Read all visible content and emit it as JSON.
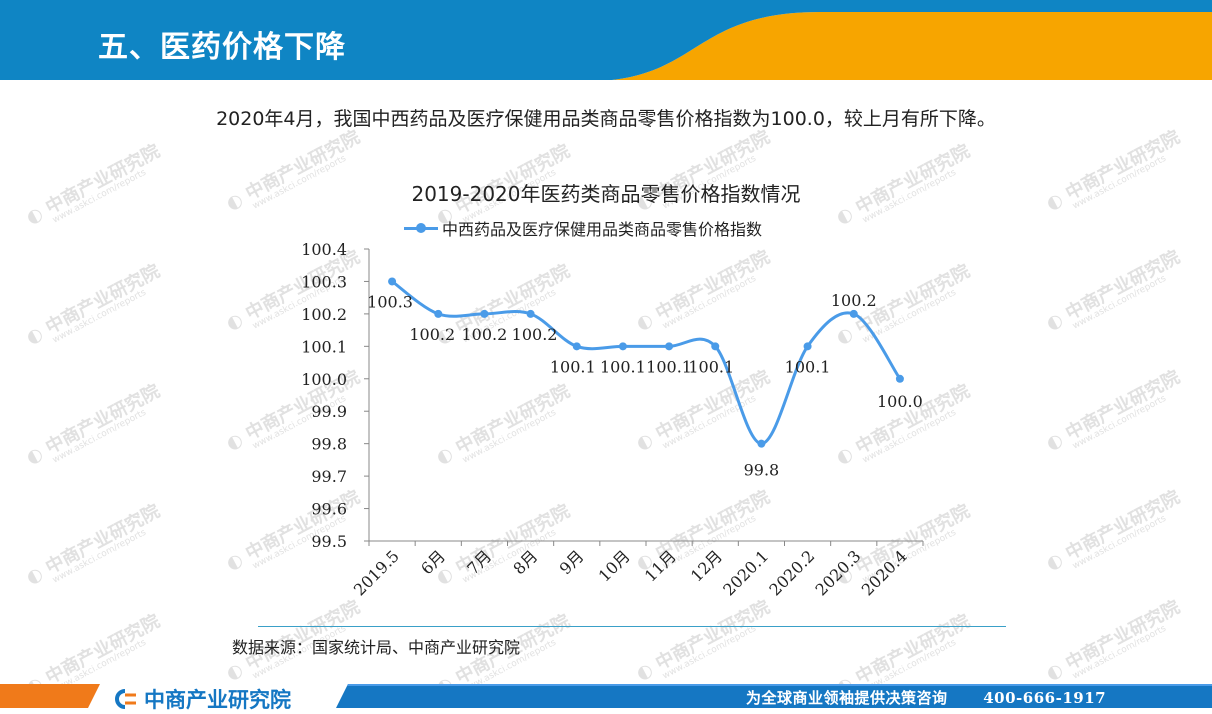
{
  "header": {
    "title": "五、医药价格下降",
    "colors": {
      "primary": "#0f85c4",
      "accent": "#f7a500"
    }
  },
  "subtitle": "2020年4月，我国中西药品及医疗保健用品类商品零售价格指数为100.0，较上月有所下降。",
  "watermark": {
    "name": "中商产业研究院",
    "url": "www.askci.com/reports"
  },
  "chart_data": {
    "type": "line",
    "title": "2019-2020年医药类商品零售价格指数情况",
    "categories": [
      "2019.5",
      "6月",
      "7月",
      "8月",
      "9月",
      "10月",
      "11月",
      "12月",
      "2020.1",
      "2020.2",
      "2020.3",
      "2020.4"
    ],
    "series": [
      {
        "name": "中西药品及医疗保健用品类商品零售价格指数",
        "values": [
          100.3,
          100.2,
          100.2,
          100.2,
          100.1,
          100.1,
          100.1,
          100.1,
          99.8,
          100.1,
          100.2,
          100.0
        ],
        "labels": [
          "100.3",
          "100.2",
          "100.2",
          "100.2",
          "100.1",
          "100.1",
          "100.1",
          "100.1",
          "99.8",
          "100.1",
          "100.2",
          "100.0"
        ],
        "color": "#4a9be8"
      }
    ],
    "ylim": [
      99.5,
      100.4
    ],
    "yticks": [
      "100.4",
      "100.3",
      "100.2",
      "100.1",
      "100.0",
      "99.9",
      "99.8",
      "99.7",
      "99.6",
      "99.5"
    ],
    "grid": false,
    "legend": "top",
    "smooth": true
  },
  "source": "数据来源：国家统计局、中商产业研究院",
  "footer": {
    "logo_text": "中商产业研究院",
    "logo_icon": "askci-logo-icon",
    "slogan": "为全球商业领袖提供决策咨询",
    "phone": "400-666-1917",
    "colors": {
      "band": "#1577c3",
      "accent": "#f07a1a"
    }
  }
}
